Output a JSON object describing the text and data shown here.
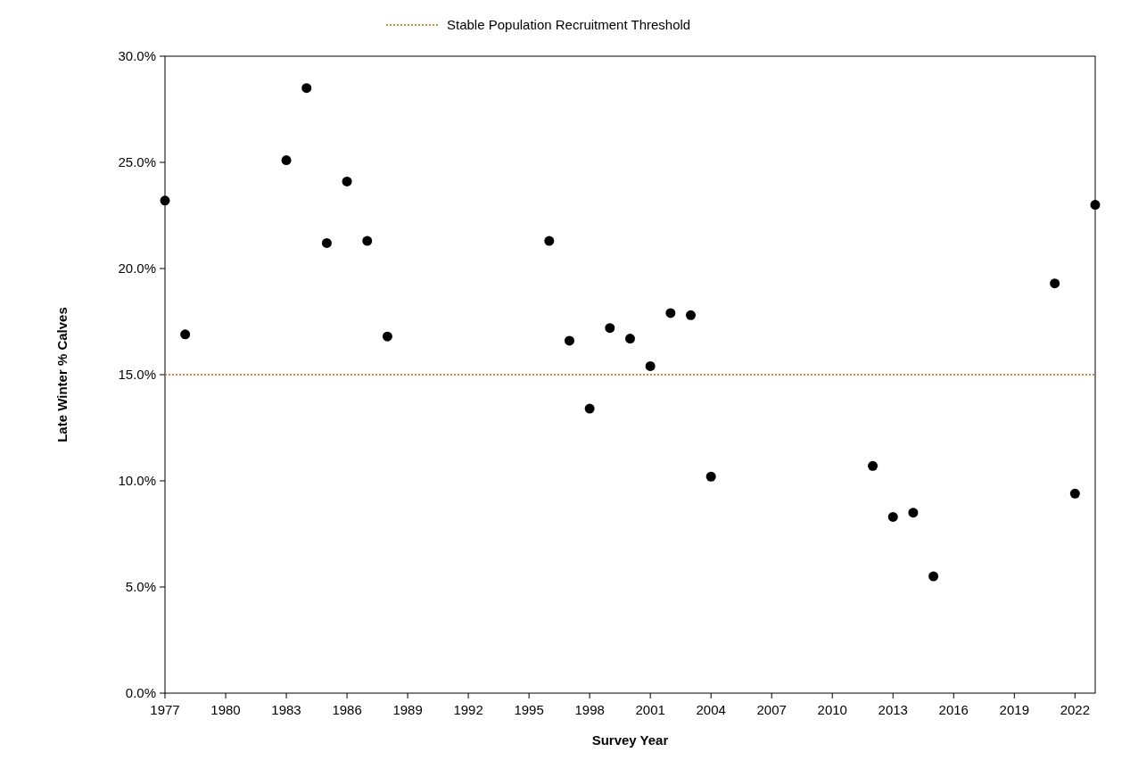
{
  "chart_data": {
    "type": "scatter",
    "xlabel": "Survey Year",
    "ylabel": "Late Winter % Calves",
    "x": [
      1977,
      1978,
      1983,
      1984,
      1985,
      1986,
      1987,
      1988,
      1996,
      1997,
      1998,
      1999,
      2000,
      2001,
      2002,
      2003,
      2004,
      2012,
      2013,
      2014,
      2015,
      2021,
      2022,
      2023
    ],
    "series": [
      {
        "color": "#000000",
        "values": [
          23.2,
          16.9,
          25.1,
          28.5,
          21.2,
          24.1,
          21.3,
          16.8,
          21.3,
          16.6,
          13.4,
          17.2,
          16.7,
          15.4,
          17.9,
          17.8,
          10.2,
          10.7,
          8.3,
          8.5,
          5.5,
          19.3,
          9.4,
          23.0
        ]
      }
    ],
    "xlim": [
      1977,
      2023
    ],
    "xticks": [
      1977,
      1980,
      1983,
      1986,
      1989,
      1992,
      1995,
      1998,
      2001,
      2004,
      2007,
      2010,
      2013,
      2016,
      2019,
      2022
    ],
    "ylim": [
      0,
      30
    ],
    "yticks": [
      {
        "value": 0,
        "label": "0.0%"
      },
      {
        "value": 5,
        "label": "5.0%"
      },
      {
        "value": 10,
        "label": "10.0%"
      },
      {
        "value": 15,
        "label": "15.0%"
      },
      {
        "value": 20,
        "label": "20.0%"
      },
      {
        "value": 25,
        "label": "25.0%"
      },
      {
        "value": 30,
        "label": "30.0%"
      }
    ],
    "ref_lines": [
      {
        "axis": "y",
        "value": 15,
        "label": "Stable Population Recruitment Threshold",
        "color": "#ed7d31",
        "line_style": "dotted"
      }
    ],
    "marker": "circle",
    "grid": false,
    "legend": "top"
  }
}
